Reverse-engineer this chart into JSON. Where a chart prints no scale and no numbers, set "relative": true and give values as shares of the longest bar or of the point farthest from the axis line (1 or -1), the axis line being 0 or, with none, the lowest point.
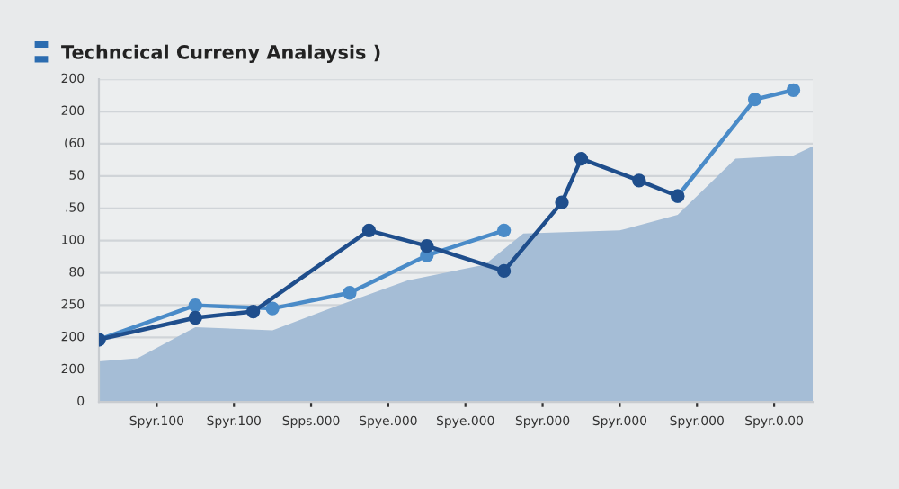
{
  "chart_data": {
    "type": "line",
    "title": "Techncical Curreny Analaysis )",
    "relative": true,
    "categories": [
      null,
      null,
      null,
      "Spyr.100",
      null,
      null,
      null,
      "Spyr.100",
      null,
      null,
      null,
      "Spps.000",
      null,
      null,
      null,
      "Spye.000",
      null,
      null,
      null,
      "Spye.000",
      null,
      null,
      null,
      "Spyr.000",
      null,
      null,
      null,
      "Spyr.000",
      null,
      null,
      null,
      "Spyr.000",
      null,
      null,
      null,
      "Spyr.0.00",
      null,
      null
    ],
    "annotations": [
      "0",
      "200",
      "200",
      "250",
      "80",
      "100",
      ".50",
      "50",
      "(60",
      "200",
      "200"
    ],
    "grid": "y",
    "line_style": "solid",
    "series": [
      {
        "type": "area",
        "color": "#a5bdd6",
        "values": [
          0.13,
          null,
          0.14,
          null,
          null,
          0.24,
          null,
          null,
          null,
          0.23,
          null,
          null,
          0.3,
          null,
          null,
          null,
          0.39,
          null,
          null,
          null,
          0.44,
          null,
          0.54,
          null,
          null,
          null,
          null,
          0.55,
          null,
          null,
          0.6,
          null,
          null,
          0.78,
          null,
          null,
          0.79,
          0.82
        ]
      },
      {
        "color": "#4a8bc8",
        "marker": "circle",
        "values": [
          0.2,
          null,
          null,
          null,
          null,
          0.31,
          null,
          null,
          null,
          0.3,
          null,
          null,
          null,
          0.35,
          null,
          null,
          null,
          0.47,
          null,
          null,
          null,
          0.55,
          null,
          null,
          null,
          null,
          null,
          null,
          null,
          null,
          null,
          null,
          null,
          null,
          null,
          null,
          null,
          null
        ]
      },
      {
        "color": "#4a8bc8",
        "marker": "circle",
        "values": [
          null,
          null,
          null,
          null,
          null,
          null,
          null,
          null,
          null,
          null,
          null,
          null,
          null,
          null,
          null,
          null,
          null,
          null,
          null,
          null,
          null,
          null,
          null,
          null,
          null,
          null,
          null,
          null,
          null,
          null,
          0.66,
          null,
          null,
          null,
          0.97,
          null,
          1.0,
          null
        ]
      },
      {
        "color": "#1f4e8c",
        "marker": "circle",
        "values": [
          0.2,
          null,
          null,
          null,
          null,
          0.27,
          null,
          null,
          0.29,
          null,
          null,
          null,
          null,
          null,
          0.55,
          null,
          null,
          0.5,
          null,
          null,
          null,
          0.42,
          null,
          null,
          0.64,
          0.78,
          null,
          null,
          0.71,
          null,
          0.66,
          null,
          null,
          null,
          null,
          null,
          null,
          null
        ]
      }
    ]
  }
}
